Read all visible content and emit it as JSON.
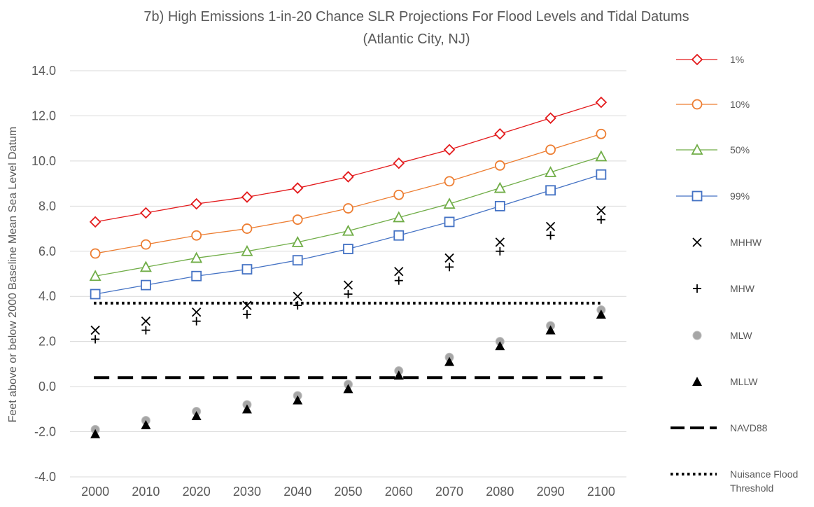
{
  "chart_data": {
    "type": "line",
    "title": "7b) High Emissions 1-in-20 Chance SLR Projections For Flood Levels and Tidal Datums",
    "subtitle": "(Atlantic City, NJ)",
    "xlabel": "",
    "ylabel": "Feet above or below 2000 Baseline Mean Sea Level Datum",
    "categories": [
      "2000",
      "2010",
      "2020",
      "2030",
      "2040",
      "2050",
      "2060",
      "2070",
      "2080",
      "2090",
      "2100"
    ],
    "ylim": [
      -4,
      14
    ],
    "yticks": [
      "-4.0",
      "-2.0",
      "0.0",
      "2.0",
      "4.0",
      "6.0",
      "8.0",
      "10.0",
      "12.0",
      "14.0"
    ],
    "grid": true,
    "legend_position": "right",
    "series": [
      {
        "name": "1%",
        "style": "line-diamond",
        "color": "#e31a1c",
        "values": [
          7.3,
          7.7,
          8.1,
          8.4,
          8.8,
          9.3,
          9.9,
          10.5,
          11.2,
          11.9,
          12.6
        ]
      },
      {
        "name": "10%",
        "style": "line-circle",
        "color": "#ed7d31",
        "values": [
          5.9,
          6.3,
          6.7,
          7.0,
          7.4,
          7.9,
          8.5,
          9.1,
          9.8,
          10.5,
          11.2
        ]
      },
      {
        "name": "50%",
        "style": "line-triangle",
        "color": "#70ad47",
        "values": [
          4.9,
          5.3,
          5.7,
          6.0,
          6.4,
          6.9,
          7.5,
          8.1,
          8.8,
          9.5,
          10.2
        ]
      },
      {
        "name": "99%",
        "style": "line-square",
        "color": "#4472c4",
        "values": [
          4.1,
          4.5,
          4.9,
          5.2,
          5.6,
          6.1,
          6.7,
          7.3,
          8.0,
          8.7,
          9.4
        ]
      },
      {
        "name": "MHHW",
        "style": "marker-x",
        "color": "#000000",
        "values": [
          2.5,
          2.9,
          3.3,
          3.6,
          4.0,
          4.5,
          5.1,
          5.7,
          6.4,
          7.1,
          7.8
        ]
      },
      {
        "name": "MHW",
        "style": "marker-plus",
        "color": "#000000",
        "values": [
          2.1,
          2.5,
          2.9,
          3.2,
          3.6,
          4.1,
          4.7,
          5.3,
          6.0,
          6.7,
          7.4
        ]
      },
      {
        "name": "MLW",
        "style": "marker-dot",
        "color": "#a6a6a6",
        "values": [
          -1.9,
          -1.5,
          -1.1,
          -0.8,
          -0.4,
          0.1,
          0.7,
          1.3,
          2.0,
          2.7,
          3.4
        ]
      },
      {
        "name": "MLLW",
        "style": "marker-triangle",
        "color": "#000000",
        "values": [
          -2.1,
          -1.7,
          -1.3,
          -1.0,
          -0.6,
          -0.1,
          0.5,
          1.1,
          1.8,
          2.5,
          3.2
        ]
      },
      {
        "name": "NAVD88",
        "style": "dash",
        "color": "#000000",
        "values": [
          0.4,
          0.4,
          0.4,
          0.4,
          0.4,
          0.4,
          0.4,
          0.4,
          0.4,
          0.4,
          0.4
        ]
      },
      {
        "name": "Nuisance Flood Threshold",
        "style": "dot",
        "color": "#000000",
        "values": [
          3.7,
          3.7,
          3.7,
          3.7,
          3.7,
          3.7,
          3.7,
          3.7,
          3.7,
          3.7,
          3.7
        ]
      }
    ]
  }
}
